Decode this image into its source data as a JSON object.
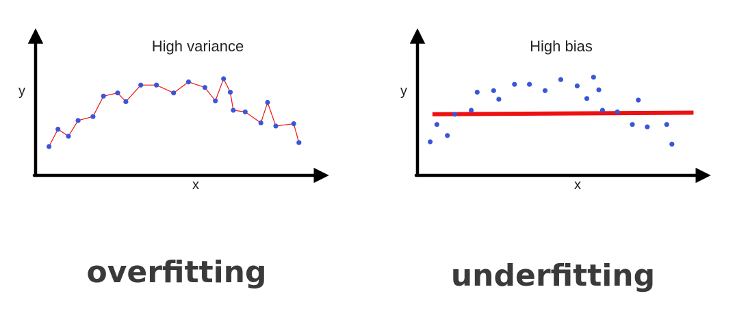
{
  "colors": {
    "axis": "#000000",
    "point": "#3a55d8",
    "fit_line": "#ee1111",
    "caption": "#3a3a3a"
  },
  "chart_data": [
    {
      "type": "scatter",
      "title": "High variance",
      "xlabel": "x",
      "ylabel": "y",
      "caption": "overfitting",
      "grid": false,
      "fit": "connects every point",
      "points": [
        [
          0.7,
          14
        ],
        [
          1.9,
          36
        ],
        [
          3.3,
          27
        ],
        [
          4.6,
          47
        ],
        [
          6.6,
          52
        ],
        [
          8.0,
          78
        ],
        [
          9.9,
          82
        ],
        [
          11.0,
          71
        ],
        [
          13.0,
          92
        ],
        [
          15.1,
          92
        ],
        [
          17.4,
          82
        ],
        [
          19.4,
          96
        ],
        [
          21.6,
          89
        ],
        [
          23.0,
          72
        ],
        [
          24.1,
          100
        ],
        [
          25.0,
          83
        ],
        [
          25.4,
          60
        ],
        [
          27.0,
          58
        ],
        [
          29.1,
          44
        ],
        [
          30.0,
          70
        ],
        [
          31.1,
          40
        ],
        [
          33.5,
          43
        ],
        [
          34.2,
          19
        ]
      ]
    },
    {
      "type": "scatter",
      "title": "High bias",
      "xlabel": "x",
      "ylabel": "y",
      "caption": "underfitting",
      "grid": false,
      "fit": "nearly horizontal straight line",
      "fit_line": [
        [
          1.0,
          55
        ],
        [
          36.0,
          57
        ]
      ],
      "points": [
        [
          0.7,
          20
        ],
        [
          1.6,
          42
        ],
        [
          3.0,
          28
        ],
        [
          4.0,
          55
        ],
        [
          6.2,
          60
        ],
        [
          7.0,
          83
        ],
        [
          9.2,
          85
        ],
        [
          9.9,
          74
        ],
        [
          12.0,
          93
        ],
        [
          14.0,
          93
        ],
        [
          16.1,
          85
        ],
        [
          18.2,
          99
        ],
        [
          20.4,
          91
        ],
        [
          21.7,
          75
        ],
        [
          22.6,
          102
        ],
        [
          23.3,
          86
        ],
        [
          23.8,
          60
        ],
        [
          25.8,
          58
        ],
        [
          27.8,
          42
        ],
        [
          28.6,
          73
        ],
        [
          29.8,
          39
        ],
        [
          32.4,
          42
        ],
        [
          33.1,
          17
        ]
      ]
    }
  ]
}
